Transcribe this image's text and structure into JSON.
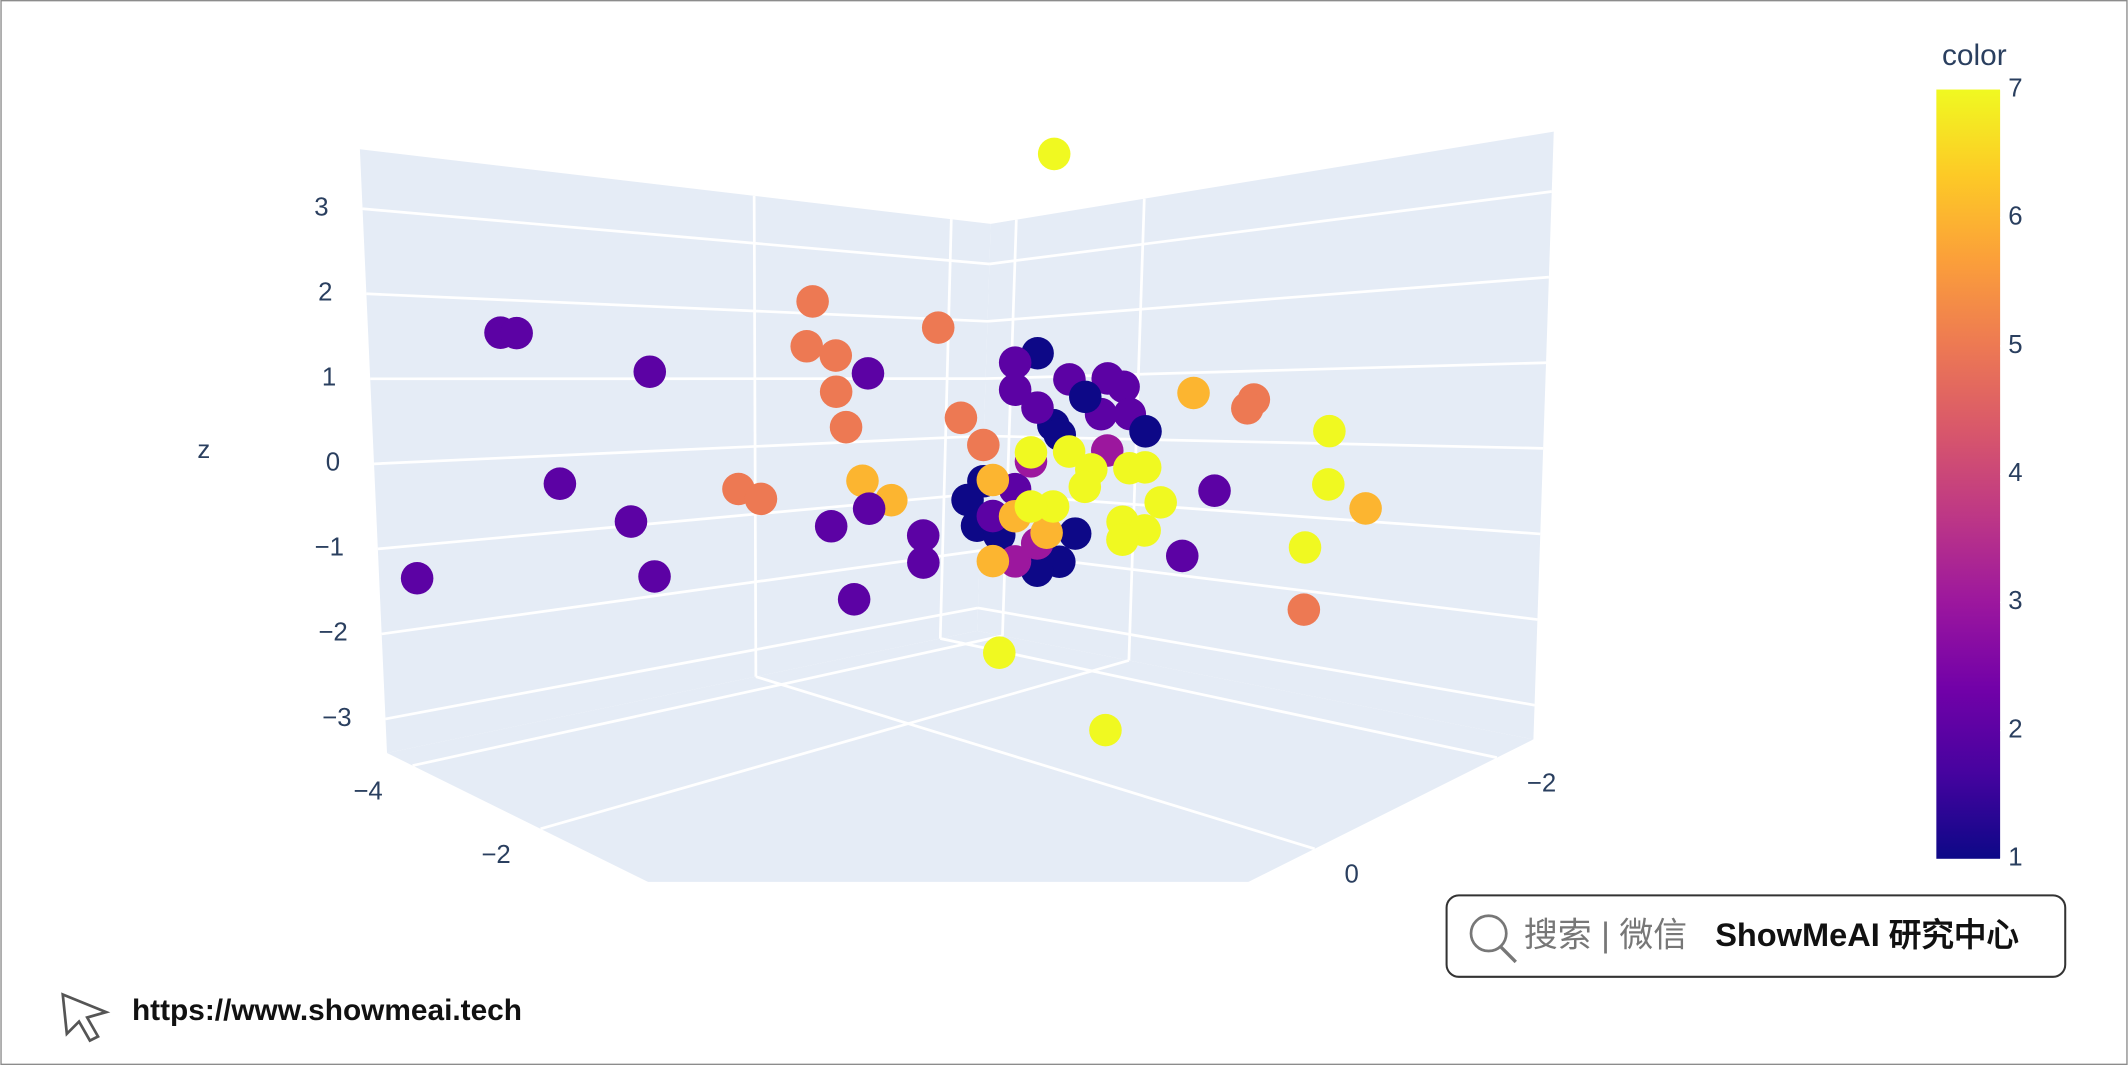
{
  "chart_data": {
    "type": "scatter3d",
    "x": [
      0.7,
      -3.4,
      -3.3,
      -2.3,
      -3.0,
      -2.5,
      -4.1,
      -2.3,
      -1.1,
      -1.2,
      -0.9,
      -0.9,
      -0.9,
      -0.7,
      -0.2,
      -1.7,
      -1.5,
      -0.8,
      -0.5,
      -0.7,
      -1.0,
      -0.3,
      -0.3,
      -0.8,
      0.0,
      0.2,
      1.7,
      2.2,
      2.1,
      2.8,
      2.8,
      3.1,
      2.6,
      2.6,
      1.9,
      1.7,
      0.3,
      1.1,
      0.6,
      0.4,
      0.4,
      0.8,
      1.1,
      1.2,
      1.3,
      0.7,
      1.0,
      1.4,
      0.2,
      0.1,
      0.1,
      0.4,
      0.6,
      0.9,
      0.8,
      0.3,
      0.8,
      0.6,
      0.9,
      0.2,
      0.4,
      0.6,
      1.1,
      0.5,
      0.2,
      0.4,
      0.6,
      0.2,
      0.5,
      0.8,
      1.0,
      1.3,
      1.4,
      1.5,
      1.2,
      1.4,
      1.2,
      0.7,
      0.5,
      0.9
    ],
    "y": [
      0.3,
      3.3,
      3.2,
      2.5,
      3.0,
      2.6,
      3.8,
      2.5,
      1.6,
      1.6,
      1.5,
      1.5,
      1.4,
      1.3,
      0.9,
      2.0,
      1.9,
      1.3,
      1.2,
      1.3,
      1.5,
      1.0,
      1.0,
      1.4,
      0.8,
      0.7,
      -0.5,
      -0.8,
      -0.8,
      -1.2,
      -1.2,
      -1.4,
      -1.1,
      -1.1,
      -0.6,
      -0.4,
      0.6,
      0.0,
      0.4,
      0.5,
      0.5,
      0.2,
      0.0,
      -0.1,
      -0.1,
      0.3,
      0.0,
      -0.2,
      0.7,
      0.8,
      0.7,
      0.5,
      0.4,
      0.1,
      0.3,
      0.6,
      0.3,
      0.4,
      0.2,
      0.6,
      0.5,
      0.4,
      0.0,
      0.4,
      0.6,
      0.5,
      0.3,
      0.6,
      0.4,
      0.2,
      0.1,
      -0.1,
      -0.2,
      -0.3,
      -0.1,
      -0.2,
      -0.1,
      0.3,
      0.4,
      0.1
    ],
    "z": [
      3.6,
      1.6,
      1.6,
      1.2,
      -0.1,
      -0.5,
      -1.3,
      -1.1,
      2.0,
      1.5,
      1.4,
      1.0,
      0.6,
      1.2,
      1.7,
      -0.1,
      -0.2,
      0.0,
      -0.2,
      -0.3,
      -0.5,
      -0.6,
      -0.9,
      -1.3,
      0.7,
      0.4,
      0.9,
      0.8,
      0.7,
      0.4,
      -0.2,
      -0.5,
      -0.9,
      -1.6,
      -0.2,
      -0.9,
      -1.9,
      -2.8,
      1.4,
      1.3,
      1.0,
      1.1,
      1.1,
      1.0,
      0.7,
      0.6,
      0.7,
      0.5,
      0.0,
      -0.2,
      -0.5,
      -0.1,
      0.8,
      0.9,
      0.5,
      -0.6,
      -0.9,
      -1.0,
      -0.6,
      -0.4,
      -0.9,
      -0.7,
      0.3,
      0.2,
      0.0,
      -0.4,
      -0.6,
      -0.9,
      0.3,
      0.3,
      0.1,
      0.1,
      0.1,
      -0.3,
      -0.5,
      -0.6,
      -0.7,
      -0.3,
      -0.3,
      -0.1
    ],
    "color": [
      7,
      2,
      2,
      2,
      2,
      2,
      2,
      2,
      5,
      5,
      5,
      5,
      5,
      2,
      5,
      5,
      5,
      6,
      6,
      2,
      2,
      2,
      2,
      2,
      5,
      5,
      6,
      5,
      5,
      7,
      7,
      6,
      7,
      5,
      2,
      2,
      7,
      7,
      1,
      2,
      2,
      2,
      2,
      2,
      2,
      1,
      2,
      1,
      1,
      1,
      1,
      2,
      2,
      1,
      1,
      1,
      1,
      1,
      1,
      2,
      3,
      3,
      3,
      3,
      6,
      6,
      6,
      6,
      7,
      7,
      7,
      7,
      7,
      7,
      7,
      7,
      7,
      7,
      7,
      7
    ],
    "xlim": [
      -4.4,
      4.4
    ],
    "ylim": [
      -2.4,
      4
    ],
    "zlim": [
      -3.4,
      3.7
    ],
    "xticks": [
      {
        "value": -4,
        "label": "−4"
      },
      {
        "value": -2,
        "label": "−2"
      }
    ],
    "yticks": [
      {
        "value": -2,
        "label": "−2"
      },
      0
    ],
    "zticks": [
      {
        "value": -3,
        "label": "−3"
      },
      {
        "value": -2,
        "label": "−2"
      },
      {
        "value": -1,
        "label": "−1"
      },
      0,
      1,
      2,
      3
    ],
    "zlabel": "z",
    "wall_color": "#e5ecf6",
    "grid_color": "#ffffff",
    "colorbar": {
      "title": "color",
      "clim": [
        1,
        7
      ],
      "ticks": [
        1,
        2,
        3,
        4,
        5,
        6,
        7
      ],
      "colorscale": [
        "#0d0887",
        "#46039f",
        "#7201a8",
        "#9c179e",
        "#bd3786",
        "#d8576b",
        "#ed7953",
        "#fb9f3a",
        "#fdca26",
        "#f0f921"
      ]
    }
  },
  "watermark": {
    "search": "搜索 | 微信",
    "brand": "ShowMeAI 研究中心",
    "url": "https://www.showmeai.tech"
  }
}
